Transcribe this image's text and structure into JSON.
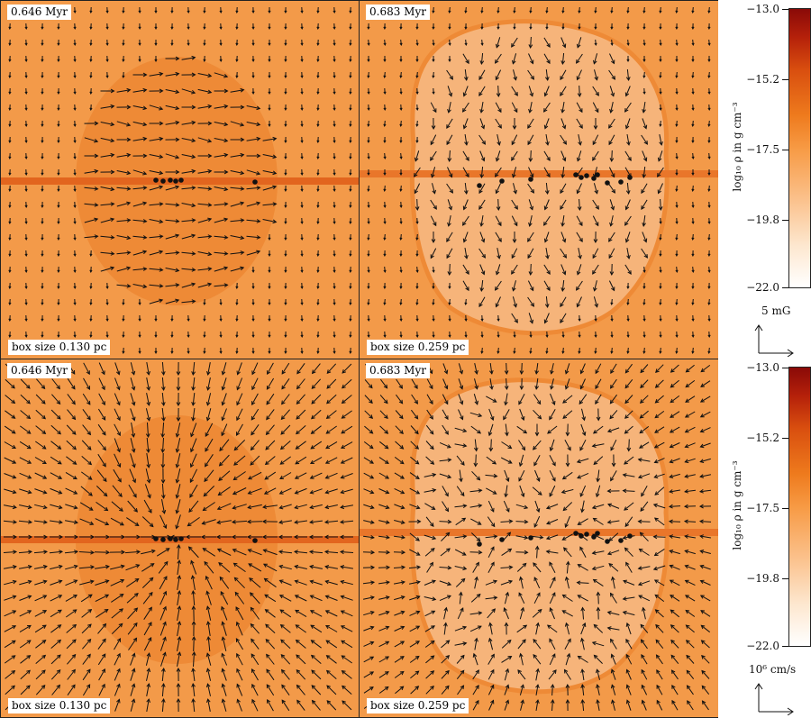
{
  "panels": [
    {
      "time": "0.646 Myr",
      "box_size": "box size 0.130 pc"
    },
    {
      "time": "0.683 Myr",
      "box_size": "box size 0.259 pc"
    },
    {
      "time": "0.646 Myr",
      "box_size": "box size 0.130 pc"
    },
    {
      "time": "0.683 Myr",
      "box_size": "box size 0.259 pc"
    }
  ],
  "colorbars": [
    {
      "title": "log₁₀ ρ in g cm⁻³",
      "ticks": [
        "−13.0",
        "−15.2",
        "−17.5",
        "−19.8",
        "−22.0"
      ],
      "scale_label": "5 mG"
    },
    {
      "title": "log₁₀ ρ in g cm⁻³",
      "ticks": [
        "−13.0",
        "−15.2",
        "−17.5",
        "−19.8",
        "−22.0"
      ],
      "scale_label": "10⁶ cm/s"
    }
  ],
  "colors": {
    "background": "#f39a49",
    "bubble": "#ee8a36",
    "filament": "#e2651e",
    "arrow": "#111111",
    "colormap_low": "#ffffff",
    "colormap_high": "#8a0a08"
  }
}
